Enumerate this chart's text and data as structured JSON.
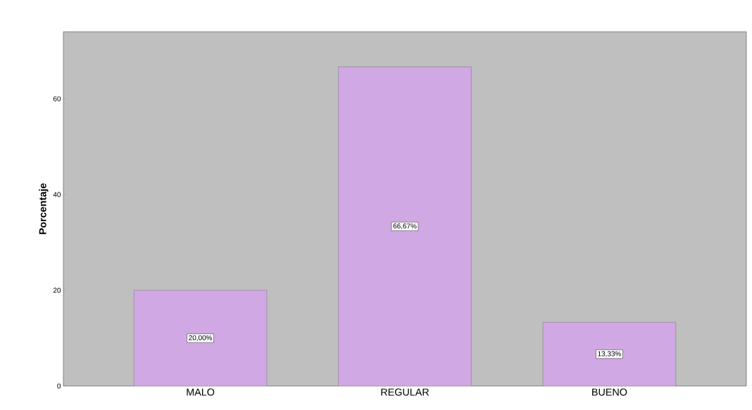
{
  "chart_data": {
    "type": "bar",
    "ylabel": "Porcentaje",
    "categories": [
      "MALO",
      "REGULAR",
      "BUENO"
    ],
    "values": [
      20,
      66.67,
      13.33
    ],
    "value_labels": [
      "20,00%",
      "66,67%",
      "13,33%"
    ],
    "color": "#d0a8e4",
    "ylim": [
      0,
      74
    ],
    "yticks": [
      0,
      20,
      40,
      60
    ]
  }
}
